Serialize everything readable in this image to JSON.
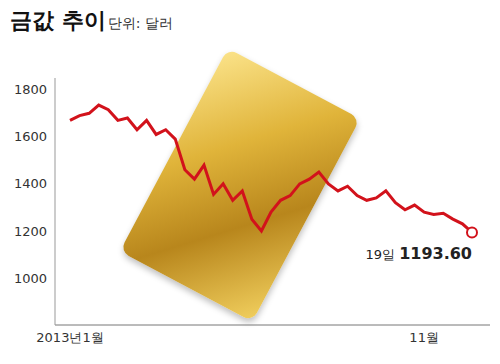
{
  "chart_data": {
    "type": "line",
    "title": "금값 추이",
    "subtitle": "단위: 달러",
    "categories": [
      "2013년1월",
      null,
      null,
      null,
      null,
      null,
      null,
      null,
      null,
      null,
      null,
      null,
      null,
      null,
      null,
      null,
      null,
      null,
      null,
      null,
      null,
      null,
      null,
      null,
      null,
      null,
      null,
      null,
      null,
      null,
      null,
      null,
      null,
      null,
      null,
      null,
      null,
      "11월",
      null,
      null,
      null,
      null,
      null
    ],
    "values": [
      1670,
      1690,
      1700,
      1735,
      1715,
      1670,
      1680,
      1630,
      1670,
      1610,
      1630,
      1590,
      1460,
      1420,
      1480,
      1355,
      1400,
      1330,
      1370,
      1250,
      1200,
      1280,
      1330,
      1350,
      1400,
      1420,
      1450,
      1400,
      1370,
      1390,
      1350,
      1330,
      1340,
      1370,
      1320,
      1290,
      1310,
      1280,
      1270,
      1275,
      1250,
      1230,
      1193.6
    ],
    "color": "#d2121b",
    "ylim": [
      800,
      1850
    ],
    "yticks": [
      1000,
      1200,
      1400,
      1600,
      1800
    ],
    "annotation": "19일 1193.60"
  }
}
